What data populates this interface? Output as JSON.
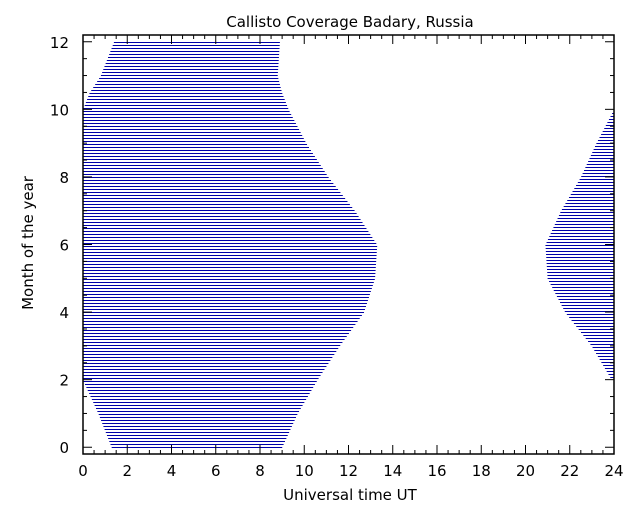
{
  "chart_data": {
    "type": "area",
    "title": "Callisto Coverage Badary, Russia",
    "xlabel": "Universal time UT",
    "ylabel": "Month of the year",
    "xlim": [
      0,
      24
    ],
    "ylim": [
      -0.2,
      12.2
    ],
    "xticks": [
      "0",
      "2",
      "4",
      "6",
      "8",
      "10",
      "12",
      "14",
      "16",
      "18",
      "20",
      "22",
      "24"
    ],
    "yticks": [
      "0",
      "2",
      "4",
      "6",
      "8",
      "10",
      "12"
    ],
    "hatch_color": "#0000a8",
    "grid": false,
    "series": [
      {
        "points": [
          {
            "month": 0.0,
            "start": 1.3,
            "end": 9.0
          },
          {
            "month": 1.0,
            "start": 0.7,
            "end": 9.7
          },
          {
            "month": 2.0,
            "start": 0.0,
            "end": 10.6
          },
          {
            "month": 3.0,
            "start": 0.0,
            "end": 11.6
          },
          {
            "month": 4.0,
            "start": 0.0,
            "end": 12.7
          },
          {
            "month": 5.0,
            "start": 0.0,
            "end": 13.2
          },
          {
            "month": 6.0,
            "start": 0.0,
            "end": 13.3
          },
          {
            "month": 7.0,
            "start": 0.0,
            "end": 12.3
          },
          {
            "month": 8.0,
            "start": 0.0,
            "end": 11.1
          },
          {
            "month": 9.0,
            "start": 0.0,
            "end": 10.1
          },
          {
            "month": 10.0,
            "start": 0.0,
            "end": 9.3
          },
          {
            "month": 10.5,
            "start": 0.3,
            "end": 9.0
          },
          {
            "month": 11.0,
            "start": 0.8,
            "end": 8.8
          },
          {
            "month": 12.0,
            "start": 1.4,
            "end": 8.9
          }
        ]
      },
      {
        "points": [
          {
            "month": 2.0,
            "start": 23.9,
            "end": 24.0
          },
          {
            "month": 3.0,
            "start": 23.0,
            "end": 24.0
          },
          {
            "month": 4.0,
            "start": 21.8,
            "end": 24.0
          },
          {
            "month": 5.0,
            "start": 21.0,
            "end": 24.0
          },
          {
            "month": 6.0,
            "start": 20.9,
            "end": 24.0
          },
          {
            "month": 7.0,
            "start": 21.6,
            "end": 24.0
          },
          {
            "month": 8.0,
            "start": 22.5,
            "end": 24.0
          },
          {
            "month": 9.0,
            "start": 23.2,
            "end": 24.0
          },
          {
            "month": 10.0,
            "start": 24.0,
            "end": 24.0
          }
        ]
      }
    ]
  }
}
